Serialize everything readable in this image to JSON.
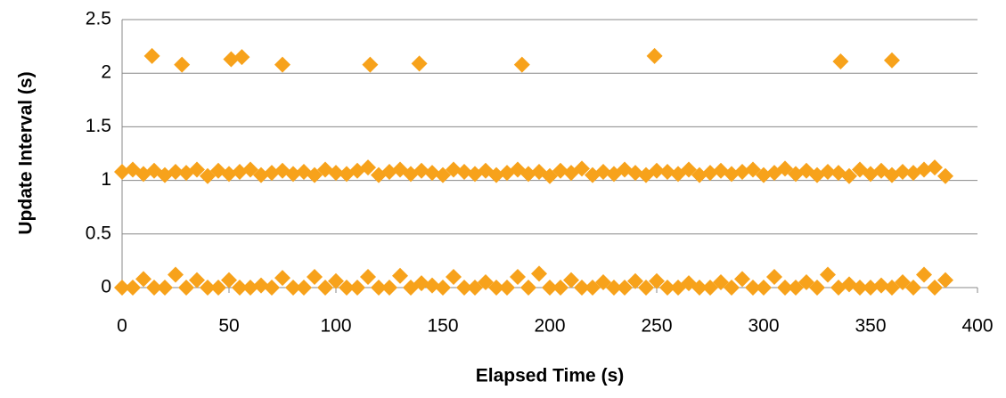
{
  "chart_data": {
    "type": "scatter",
    "x_label": "Elapsed Time (s)",
    "y_label": "Update Interval (s)",
    "color": "#f7a21b",
    "grid": true,
    "xlim": [
      0,
      400
    ],
    "xticks": [
      0,
      50,
      100,
      150,
      200,
      250,
      300,
      350,
      400
    ],
    "ylim": [
      0,
      2.5
    ],
    "yticks": [
      0,
      0.5,
      1,
      1.5,
      2,
      2.5
    ],
    "x": [
      14,
      28,
      51,
      56,
      75,
      116,
      139,
      187,
      249,
      336,
      360,
      0,
      5,
      10,
      15,
      20,
      25,
      30,
      35,
      40,
      45,
      50,
      55,
      60,
      65,
      70,
      75,
      80,
      85,
      90,
      95,
      100,
      105,
      110,
      115,
      120,
      125,
      130,
      135,
      140,
      145,
      150,
      155,
      160,
      165,
      170,
      175,
      180,
      185,
      190,
      195,
      200,
      205,
      210,
      215,
      220,
      225,
      230,
      235,
      240,
      245,
      250,
      255,
      260,
      265,
      270,
      275,
      280,
      285,
      290,
      295,
      300,
      305,
      310,
      315,
      320,
      325,
      330,
      335,
      340,
      345,
      350,
      355,
      360,
      365,
      370,
      375,
      380,
      385,
      0,
      5,
      10,
      15,
      20,
      25,
      30,
      35,
      40,
      45,
      50,
      55,
      60,
      65,
      70,
      75,
      80,
      85,
      90,
      95,
      100,
      105,
      110,
      115,
      120,
      125,
      130,
      135,
      140,
      145,
      150,
      155,
      160,
      165,
      170,
      175,
      180,
      185,
      190,
      195,
      200,
      205,
      210,
      215,
      220,
      225,
      230,
      235,
      240,
      245,
      250,
      255,
      260,
      265,
      270,
      275,
      280,
      285,
      290,
      295,
      300,
      305,
      310,
      315,
      320,
      325,
      330,
      335,
      340,
      345,
      350,
      355,
      360,
      365,
      370,
      375,
      380,
      385
    ],
    "values": [
      2.16,
      2.08,
      2.13,
      2.15,
      2.08,
      2.08,
      2.09,
      2.08,
      2.16,
      2.11,
      2.12,
      1.08,
      1.1,
      1.06,
      1.09,
      1.05,
      1.08,
      1.07,
      1.1,
      1.04,
      1.09,
      1.06,
      1.08,
      1.1,
      1.05,
      1.07,
      1.09,
      1.06,
      1.08,
      1.05,
      1.1,
      1.07,
      1.06,
      1.09,
      1.12,
      1.05,
      1.08,
      1.1,
      1.06,
      1.09,
      1.07,
      1.05,
      1.1,
      1.08,
      1.06,
      1.09,
      1.05,
      1.07,
      1.1,
      1.06,
      1.08,
      1.04,
      1.09,
      1.07,
      1.11,
      1.05,
      1.08,
      1.06,
      1.1,
      1.07,
      1.05,
      1.09,
      1.08,
      1.06,
      1.1,
      1.05,
      1.07,
      1.09,
      1.06,
      1.08,
      1.1,
      1.05,
      1.07,
      1.11,
      1.06,
      1.09,
      1.05,
      1.08,
      1.07,
      1.04,
      1.1,
      1.06,
      1.09,
      1.05,
      1.08,
      1.07,
      1.1,
      1.12,
      1.04,
      0,
      0,
      0.08,
      0,
      0,
      0.12,
      0,
      0.07,
      0,
      0,
      0.07,
      0,
      0,
      0.02,
      0,
      0.09,
      0,
      0,
      0.1,
      0,
      0.06,
      0,
      0,
      0.1,
      0,
      0,
      0.11,
      0,
      0.04,
      0.02,
      0,
      0.1,
      0,
      0,
      0.05,
      0,
      0,
      0.1,
      0,
      0.13,
      0,
      0,
      0.07,
      0,
      0,
      0.05,
      0,
      0,
      0.06,
      0,
      0.06,
      0,
      0,
      0.04,
      0,
      0,
      0.05,
      0,
      0.08,
      0,
      0,
      0.1,
      0,
      0,
      0.05,
      0,
      0.12,
      0,
      0.03,
      0,
      0,
      0.02,
      0,
      0.05,
      0,
      0.12,
      0,
      0.07
    ]
  }
}
